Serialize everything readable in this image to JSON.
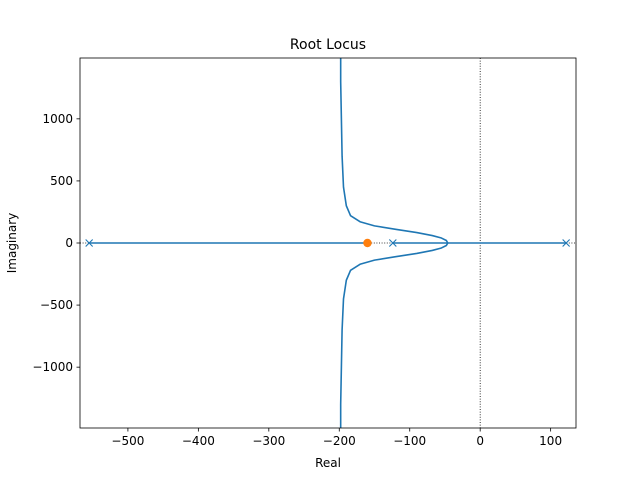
{
  "chart_data": {
    "type": "line",
    "title": "Root Locus",
    "xlabel": "Real",
    "ylabel": "Imaginary",
    "xlim": [
      -568,
      136
    ],
    "ylim": [
      -1490,
      1490
    ],
    "xticks": [
      {
        "value": -500,
        "label": "−500"
      },
      {
        "value": -400,
        "label": "−400"
      },
      {
        "value": -300,
        "label": "−300"
      },
      {
        "value": -200,
        "label": "−200"
      },
      {
        "value": -100,
        "label": "−100"
      },
      {
        "value": 0,
        "label": "0"
      },
      {
        "value": 100,
        "label": "100"
      }
    ],
    "yticks": [
      {
        "value": -1000,
        "label": "−1000"
      },
      {
        "value": -500,
        "label": "−500"
      },
      {
        "value": 0,
        "label": "0"
      },
      {
        "value": 500,
        "label": "500"
      },
      {
        "value": 1000,
        "label": "1000"
      }
    ],
    "grid": false,
    "reference_lines": {
      "x": 0,
      "y": 0,
      "style": "dotted"
    },
    "poles": [
      {
        "re": -555,
        "im": 0
      },
      {
        "re": -124,
        "im": 0
      },
      {
        "re": 122,
        "im": 0
      }
    ],
    "zeros": [
      {
        "re": -160,
        "im": 0
      }
    ],
    "branches": [
      {
        "name": "",
        "points": [
          [
            -555,
            0
          ],
          [
            -300,
            0
          ],
          [
            -160,
            0
          ]
        ]
      },
      {
        "name": "",
        "points": [
          [
            122,
            0
          ],
          [
            60,
            0
          ],
          [
            0,
            0
          ],
          [
            -30,
            0
          ],
          [
            -46,
            0
          ]
        ]
      },
      {
        "name": "",
        "points": [
          [
            -124,
            0
          ],
          [
            -90,
            0
          ],
          [
            -62,
            0
          ],
          [
            -46,
            0
          ]
        ]
      },
      {
        "name": "",
        "points": [
          [
            -46,
            0
          ],
          [
            -48,
            20
          ],
          [
            -55,
            40
          ],
          [
            -68,
            60
          ],
          [
            -90,
            84
          ],
          [
            -120,
            110
          ],
          [
            -150,
            138
          ],
          [
            -170,
            170
          ],
          [
            -184,
            220
          ],
          [
            -190,
            300
          ],
          [
            -194,
            450
          ],
          [
            -196,
            700
          ],
          [
            -197,
            1000
          ],
          [
            -198,
            1300
          ],
          [
            -198,
            1490
          ]
        ]
      },
      {
        "name": "",
        "points": [
          [
            -46,
            0
          ],
          [
            -48,
            -20
          ],
          [
            -55,
            -40
          ],
          [
            -68,
            -60
          ],
          [
            -90,
            -84
          ],
          [
            -120,
            -110
          ],
          [
            -150,
            -138
          ],
          [
            -170,
            -170
          ],
          [
            -184,
            -220
          ],
          [
            -190,
            -300
          ],
          [
            -194,
            -450
          ],
          [
            -196,
            -700
          ],
          [
            -197,
            -1000
          ],
          [
            -198,
            -1300
          ],
          [
            -198,
            -1490
          ]
        ]
      }
    ],
    "colors": {
      "locus": "#1f77b4",
      "zero": "#ff7f0e",
      "pole": "#1f77b4",
      "axes": "#000000"
    }
  }
}
